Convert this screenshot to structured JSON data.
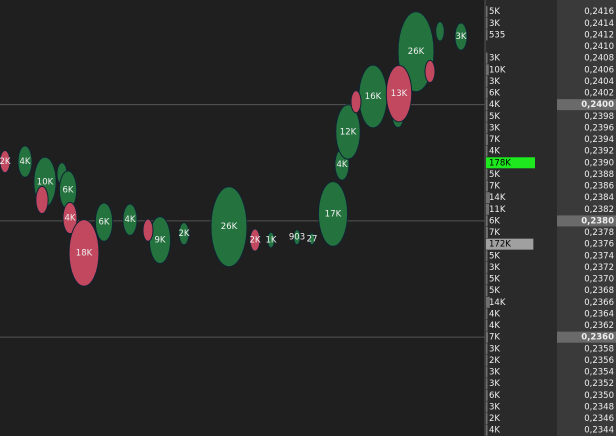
{
  "chart_data": {
    "type": "bubble",
    "xlim": [
      0,
      48.5
    ],
    "ylim": [
      0.2343,
      0.2418
    ],
    "series": [
      {
        "name": "Buy",
        "color": "#24733f",
        "x": [
          2.5,
          4.5,
          6.2,
          6.8,
          10.4,
          13.0,
          16.0,
          18.4,
          22.9,
          27.1,
          29.7,
          31.2,
          33.3,
          34.2,
          34.8,
          37.3,
          39.8,
          41.6,
          46.1,
          44.0
        ],
        "values": [
          0.23902,
          0.23867,
          0.23881,
          0.23853,
          0.23798,
          0.23802,
          0.23767,
          0.23778,
          0.2379,
          0.23767,
          0.23772,
          0.23769,
          0.23812,
          0.23897,
          0.23953,
          0.24014,
          0.23984,
          0.24091,
          0.24117,
          0.24126
        ],
        "sizes": [
          4000,
          10000,
          2000,
          6000,
          6000,
          4000,
          9000,
          2000,
          26000,
          1000,
          903,
          27,
          17000,
          4000,
          12000,
          16000,
          3000,
          26000,
          3000,
          1500
        ],
        "value_labels": [
          "4K",
          "10K",
          null,
          "6K",
          "6K",
          "4K",
          "9K",
          "2K",
          "26K",
          "1K",
          "903",
          "27",
          "17K",
          "4K",
          "12K",
          "16K",
          null,
          "26K",
          "3K",
          null
        ]
      },
      {
        "name": "Sell",
        "color": "#c2485f",
        "x": [
          0.5,
          4.2,
          14.8,
          35.6,
          43.0,
          7.0,
          8.4,
          25.5,
          39.9
        ],
        "values": [
          0.23902,
          0.23836,
          0.23784,
          0.24005,
          0.24057,
          0.23805,
          0.23745,
          0.23767,
          0.24019
        ],
        "sizes": [
          2000,
          3000,
          2000,
          2000,
          2000,
          4000,
          18000,
          2000,
          13000
        ],
        "value_labels": [
          "2K",
          null,
          null,
          null,
          null,
          "4K",
          "18K",
          "2K",
          "13K"
        ]
      }
    ],
    "yticks": [
      {
        "value": 0.2416,
        "label": "0,2416"
      },
      {
        "value": 0.2414,
        "label": "0,2414"
      },
      {
        "value": 0.2412,
        "label": "0,2412"
      },
      {
        "value": 0.241,
        "label": "0,2410"
      },
      {
        "value": 0.2408,
        "label": "0,2408"
      },
      {
        "value": 0.2406,
        "label": "0,2406"
      },
      {
        "value": 0.2404,
        "label": "0,2404"
      },
      {
        "value": 0.2402,
        "label": "0,2402"
      },
      {
        "value": 0.24,
        "label": "0,2400"
      },
      {
        "value": 0.2398,
        "label": "0,2398"
      },
      {
        "value": 0.2396,
        "label": "0,2396"
      },
      {
        "value": 0.2394,
        "label": "0,2394"
      },
      {
        "value": 0.2392,
        "label": "0,2392"
      },
      {
        "value": 0.239,
        "label": "0,2390"
      },
      {
        "value": 0.2388,
        "label": "0,2388"
      },
      {
        "value": 0.2386,
        "label": "0,2386"
      },
      {
        "value": 0.2384,
        "label": "0,2384"
      },
      {
        "value": 0.2382,
        "label": "0,2382"
      },
      {
        "value": 0.238,
        "label": "0,2380"
      },
      {
        "value": 0.2378,
        "label": "0,2378"
      },
      {
        "value": 0.2376,
        "label": "0,2376"
      },
      {
        "value": 0.2374,
        "label": "0,2374"
      },
      {
        "value": 0.2372,
        "label": "0,2372"
      },
      {
        "value": 0.237,
        "label": "0,2370"
      },
      {
        "value": 0.2368,
        "label": "0,2368"
      },
      {
        "value": 0.2366,
        "label": "0,2366"
      },
      {
        "value": 0.2364,
        "label": "0,2364"
      },
      {
        "value": 0.2362,
        "label": "0,2362"
      },
      {
        "value": 0.236,
        "label": "0,2360"
      },
      {
        "value": 0.2358,
        "label": "0,2358"
      },
      {
        "value": 0.2356,
        "label": "0,2356"
      },
      {
        "value": 0.2354,
        "label": "0,2354"
      },
      {
        "value": 0.2352,
        "label": "0,2352"
      },
      {
        "value": 0.235,
        "label": "0,2350"
      },
      {
        "value": 0.2348,
        "label": "0,2348"
      },
      {
        "value": 0.2346,
        "label": "0,2346"
      },
      {
        "value": 0.2344,
        "label": "0,2344"
      }
    ],
    "ladder_volumes": [
      5000,
      3000,
      535,
      null,
      3000,
      10000,
      3000,
      6000,
      4000,
      5000,
      3000,
      7000,
      4000,
      178000,
      5000,
      7000,
      14000,
      11000,
      6000,
      7000,
      172000,
      5000,
      3000,
      5000,
      5000,
      14000,
      4000,
      4000,
      7000,
      3000,
      2000,
      3000,
      3000,
      6000,
      3000,
      2000,
      4000
    ],
    "ladder_labels": [
      "5K",
      "3K",
      "535",
      null,
      "3K",
      "10K",
      "3K",
      "6K",
      "4K",
      "5K",
      "3K",
      "7K",
      "4K",
      "178K",
      "5K",
      "7K",
      "14K",
      "11K",
      "6K",
      "7K",
      "172K",
      "5K",
      "3K",
      "5K",
      "5K",
      "14K",
      "4K",
      "4K",
      "7K",
      "3K",
      "2K",
      "3K",
      "3K",
      "6K",
      "3K",
      "2K",
      "4K"
    ],
    "ladder_bar_color": "#a0a0a0",
    "ladder_max_color": "#1ee81e",
    "grid": true
  }
}
